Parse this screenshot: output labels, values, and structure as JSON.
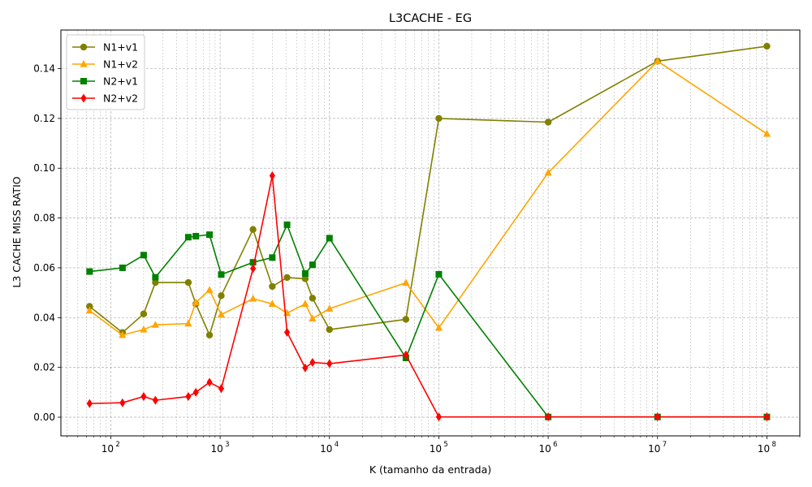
{
  "chart_data": {
    "type": "line",
    "title": "L3CACHE - EG",
    "xlabel": "K (tamanho da entrada)",
    "ylabel": "L3 CACHE MISS RATIO",
    "x_scale": "log",
    "xlim": [
      35,
      200000000
    ],
    "ylim": [
      -0.0075,
      0.1555
    ],
    "x_ticks": [
      {
        "value": 100,
        "base": "10",
        "exp": "2"
      },
      {
        "value": 1000,
        "base": "10",
        "exp": "3"
      },
      {
        "value": 10000,
        "base": "10",
        "exp": "4"
      },
      {
        "value": 100000,
        "base": "10",
        "exp": "5"
      },
      {
        "value": 1000000,
        "base": "10",
        "exp": "6"
      },
      {
        "value": 10000000,
        "base": "10",
        "exp": "7"
      },
      {
        "value": 100000000,
        "base": "10",
        "exp": "8"
      }
    ],
    "y_ticks": [
      {
        "value": 0.0,
        "label": "0.00"
      },
      {
        "value": 0.02,
        "label": "0.02"
      },
      {
        "value": 0.04,
        "label": "0.04"
      },
      {
        "value": 0.06,
        "label": "0.06"
      },
      {
        "value": 0.08,
        "label": "0.08"
      },
      {
        "value": 0.1,
        "label": "0.10"
      },
      {
        "value": 0.12,
        "label": "0.12"
      },
      {
        "value": 0.14,
        "label": "0.14"
      }
    ],
    "grid": true,
    "legend_position": "upper-left",
    "series": [
      {
        "name": "N1+v1",
        "color": "#808000",
        "marker": "circle",
        "x": [
          64,
          128,
          200,
          256,
          512,
          600,
          800,
          1024,
          2000,
          3000,
          4096,
          6000,
          7000,
          10000,
          50000,
          100000,
          1000000,
          10000000,
          100000000
        ],
        "y": [
          0.0445,
          0.034,
          0.0415,
          0.0541,
          0.0541,
          0.0455,
          0.033,
          0.0488,
          0.0754,
          0.0525,
          0.0561,
          0.0556,
          0.0478,
          0.0352,
          0.0393,
          0.12,
          0.1185,
          0.143,
          0.149
        ]
      },
      {
        "name": "N1+v2",
        "color": "#ffa500",
        "marker": "triangle",
        "x": [
          64,
          128,
          200,
          256,
          512,
          600,
          800,
          1024,
          2000,
          3000,
          4096,
          6000,
          7000,
          10000,
          50000,
          100000,
          1000000,
          10000000,
          100000000
        ],
        "y": [
          0.0428,
          0.033,
          0.0352,
          0.0371,
          0.0376,
          0.0461,
          0.0511,
          0.0412,
          0.0476,
          0.0455,
          0.0418,
          0.0455,
          0.0396,
          0.0436,
          0.054,
          0.0359,
          0.0982,
          0.143,
          0.1138
        ]
      },
      {
        "name": "N2+v1",
        "color": "#008000",
        "marker": "square",
        "x": [
          64,
          128,
          200,
          256,
          512,
          600,
          800,
          1024,
          2000,
          3000,
          4096,
          6000,
          7000,
          10000,
          50000,
          100000,
          1000000,
          10000000,
          100000000
        ],
        "y": [
          0.0585,
          0.06,
          0.0651,
          0.0562,
          0.0723,
          0.0727,
          0.0733,
          0.0573,
          0.0622,
          0.0641,
          0.0773,
          0.0577,
          0.0612,
          0.0719,
          0.0238,
          0.0574,
          0.0001,
          0.0001,
          0.0001
        ]
      },
      {
        "name": "N2+v2",
        "color": "#ff0000",
        "marker": "diamond",
        "x": [
          64,
          128,
          200,
          256,
          512,
          600,
          800,
          1024,
          2000,
          3000,
          4096,
          6000,
          7000,
          10000,
          50000,
          100000,
          1000000,
          10000000,
          100000000
        ],
        "y": [
          0.0055,
          0.0058,
          0.0083,
          0.0068,
          0.0083,
          0.01,
          0.014,
          0.0115,
          0.0597,
          0.097,
          0.0341,
          0.0198,
          0.022,
          0.0215,
          0.025,
          0.0001,
          0.0001,
          0.0001,
          0.0001
        ]
      }
    ]
  }
}
